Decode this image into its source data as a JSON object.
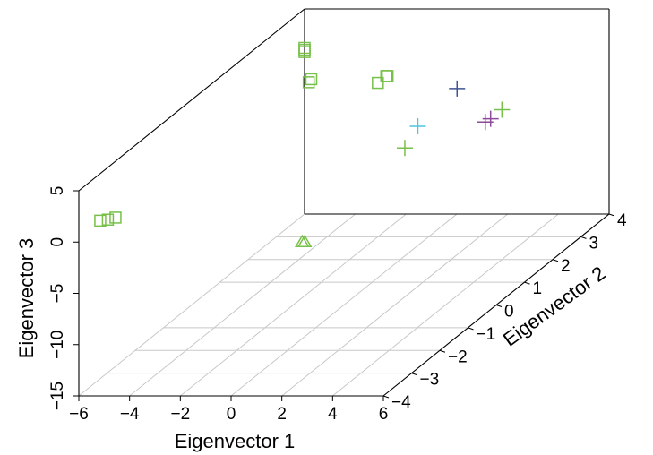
{
  "chart_data": {
    "type": "scatter",
    "title": "",
    "xlabel": "Eigenvector 1",
    "ylabel": "Eigenvector 2",
    "zlabel": "Eigenvector 3",
    "xlim": [
      -6,
      6
    ],
    "ylim": [
      -4,
      4
    ],
    "zlim": [
      -15,
      5
    ],
    "x_ticks": [
      "−6",
      "−4",
      "−2",
      "0",
      "2",
      "4",
      "6"
    ],
    "y_ticks": [
      "−4",
      "−3",
      "−2",
      "−1",
      "0",
      "1",
      "2",
      "3",
      "4"
    ],
    "z_ticks": [
      "−15",
      "−10",
      "−5",
      "0",
      "5"
    ],
    "grid": true,
    "colors": {
      "green": "#77c04a",
      "purple": "#8e4a9a",
      "cyan": "#4fc6dd",
      "navy": "#3f5594",
      "grid": "#c8c8c8",
      "box": "#000000"
    },
    "points": [
      {
        "marker": "square",
        "color": "green",
        "x": -6.0,
        "y": 4.0,
        "z": 1.0
      },
      {
        "marker": "square",
        "color": "green",
        "x": -6.0,
        "y": 4.0,
        "z": 1.2
      },
      {
        "marker": "square",
        "color": "green",
        "x": -6.0,
        "y": 4.0,
        "z": 0.8
      },
      {
        "marker": "square",
        "color": "green",
        "x": -2.5,
        "y": 1.0,
        "z": 4.5
      },
      {
        "marker": "square",
        "color": "green",
        "x": -2.4,
        "y": 1.0,
        "z": 4.8
      },
      {
        "marker": "square",
        "color": "green",
        "x": -1.0,
        "y": 2.1,
        "z": 2.0
      },
      {
        "marker": "square",
        "color": "green",
        "x": 0.0,
        "y": 1.5,
        "z": 4.0
      },
      {
        "marker": "square",
        "color": "green",
        "x": 0.05,
        "y": 1.5,
        "z": 4.0
      },
      {
        "marker": "square",
        "color": "green",
        "x": -5.3,
        "y": -3.6,
        "z": 1.3
      },
      {
        "marker": "square",
        "color": "green",
        "x": -5.0,
        "y": -3.6,
        "z": 1.5
      },
      {
        "marker": "square",
        "color": "green",
        "x": -5.6,
        "y": -3.6,
        "z": 1.2
      },
      {
        "marker": "triangle",
        "color": "green",
        "x": 2.8,
        "y": -4.0,
        "z": 0.0
      },
      {
        "marker": "triangle",
        "color": "green",
        "x": 2.9,
        "y": -4.0,
        "z": 0.0
      },
      {
        "marker": "plus",
        "color": "cyan",
        "x": 3.8,
        "y": -0.8,
        "z": 4.2
      },
      {
        "marker": "plus",
        "color": "green",
        "x": 4.4,
        "y": -1.8,
        "z": 4.3
      },
      {
        "marker": "plus",
        "color": "navy",
        "x": 3.9,
        "y": 0.5,
        "z": 5.0
      },
      {
        "marker": "plus",
        "color": "purple",
        "x": 5.9,
        "y": -0.3,
        "z": 3.5
      },
      {
        "marker": "plus",
        "color": "purple",
        "x": 6.0,
        "y": -0.2,
        "z": 3.6
      },
      {
        "marker": "plus",
        "color": "green",
        "x": 6.0,
        "y": 0.2,
        "z": 3.6
      }
    ]
  }
}
